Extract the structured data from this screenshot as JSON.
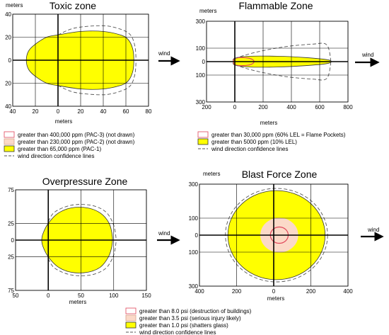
{
  "colors": {
    "inner_line": "#e0455a",
    "middle_fill": "#fbd9c8",
    "outer_fill": "#ffff00",
    "outline": "#333333",
    "grid": "#000000",
    "confidence": "#555555",
    "arrow": "#000000"
  },
  "wind_label": "wind",
  "chart_data": [
    {
      "id": "toxic",
      "type": "area",
      "title": "Toxic zone",
      "ylabel": "meters",
      "xlabel": "meters",
      "x_ticks": [
        "40",
        "20",
        "0",
        "20",
        "40",
        "60",
        "80"
      ],
      "y_ticks": [
        "40",
        "20",
        "0",
        "20",
        "40"
      ],
      "xlim": [
        -40,
        80
      ],
      "ylim": [
        -40,
        40
      ],
      "grid": true,
      "zones": [
        {
          "label": "greater than 400,000 ppm (PAC-3) (not drawn)",
          "style": "inner"
        },
        {
          "label": "greater than 230,000 ppm (PAC-2) (not drawn)",
          "style": "middle"
        },
        {
          "label": "greater than 65,000 ppm (PAC-1)",
          "style": "outer",
          "boundary": [
            [
              -28,
              0
            ],
            [
              -26,
              8
            ],
            [
              -20,
              14
            ],
            [
              -10,
              20
            ],
            [
              0,
              22
            ],
            [
              20,
              25
            ],
            [
              40,
              25
            ],
            [
              55,
              22
            ],
            [
              62,
              18
            ],
            [
              66,
              10
            ],
            [
              67,
              0
            ],
            [
              66,
              -10
            ],
            [
              62,
              -18
            ],
            [
              55,
              -22
            ],
            [
              40,
              -25
            ],
            [
              20,
              -25
            ],
            [
              0,
              -22
            ],
            [
              -10,
              -20
            ],
            [
              -20,
              -14
            ],
            [
              -26,
              -8
            ]
          ]
        }
      ],
      "confidence_lines": {
        "label": "wind direction confidence lines",
        "upper": [
          [
            0,
            22
          ],
          [
            15,
            28
          ],
          [
            40,
            30
          ],
          [
            55,
            27
          ],
          [
            64,
            22
          ],
          [
            68,
            12
          ],
          [
            69,
            0
          ]
        ],
        "lower": [
          [
            0,
            -22
          ],
          [
            15,
            -28
          ],
          [
            40,
            -30
          ],
          [
            55,
            -27
          ],
          [
            64,
            -22
          ],
          [
            68,
            -12
          ],
          [
            69,
            0
          ]
        ]
      }
    },
    {
      "id": "flammable",
      "type": "area",
      "title": "Flammable Zone",
      "ylabel": "meters",
      "xlabel": "meters",
      "x_ticks": [
        "200",
        "0",
        "200",
        "400",
        "600",
        "800"
      ],
      "y_ticks": [
        "300",
        "100",
        "0",
        "100",
        "300"
      ],
      "xlim": [
        -200,
        800
      ],
      "ylim": [
        -300,
        300
      ],
      "grid": true,
      "zones": [
        {
          "label": "greater than 30,000 ppm (60% LEL = Flame Pockets)",
          "style": "inner",
          "boundary": [
            [
              -10,
              0
            ],
            [
              0,
              22
            ],
            [
              40,
              30
            ],
            [
              100,
              26
            ],
            [
              130,
              12
            ],
            [
              135,
              0
            ],
            [
              130,
              -12
            ],
            [
              100,
              -26
            ],
            [
              40,
              -30
            ],
            [
              0,
              -22
            ]
          ]
        },
        {
          "label": "greater than 5000 ppm (10% LEL)",
          "style": "outer",
          "boundary": [
            [
              -10,
              0
            ],
            [
              0,
              25
            ],
            [
              100,
              40
            ],
            [
              300,
              40
            ],
            [
              500,
              30
            ],
            [
              650,
              15
            ],
            [
              680,
              0
            ],
            [
              650,
              -15
            ],
            [
              500,
              -30
            ],
            [
              300,
              -40
            ],
            [
              100,
              -40
            ],
            [
              0,
              -25
            ]
          ]
        }
      ],
      "confidence_lines": {
        "label": "wind direction confidence lines",
        "upper": [
          [
            0,
            25
          ],
          [
            150,
            70
          ],
          [
            350,
            110
          ],
          [
            550,
            130
          ],
          [
            650,
            125
          ],
          [
            680,
            0
          ]
        ],
        "lower": [
          [
            0,
            -25
          ],
          [
            150,
            -70
          ],
          [
            350,
            -110
          ],
          [
            550,
            -130
          ],
          [
            650,
            -125
          ],
          [
            680,
            0
          ]
        ]
      }
    },
    {
      "id": "overpressure",
      "type": "area",
      "title": "Overpressure Zone",
      "ylabel": "",
      "xlabel": "meters",
      "x_ticks": [
        "50",
        "0",
        "50",
        "100",
        "150"
      ],
      "y_ticks": [
        "75",
        "25",
        "0",
        "25",
        "75"
      ],
      "xlim": [
        -50,
        150
      ],
      "ylim": [
        -75,
        75
      ],
      "grid": true,
      "zones": [
        {
          "label": "greater than 8.0 psi (destruction of buildings)",
          "style": "inner"
        },
        {
          "label": "greater than 3.5 psi (serious injury likely)",
          "style": "middle"
        },
        {
          "label": "greater than 1.0 psi (shatters glass)",
          "style": "outer",
          "boundary": [
            [
              -10,
              0
            ],
            [
              -8,
              10
            ],
            [
              0,
              25
            ],
            [
              15,
              40
            ],
            [
              35,
              48
            ],
            [
              60,
              48
            ],
            [
              80,
              40
            ],
            [
              93,
              25
            ],
            [
              98,
              5
            ],
            [
              97,
              -10
            ],
            [
              92,
              -25
            ],
            [
              80,
              -40
            ],
            [
              60,
              -48
            ],
            [
              35,
              -48
            ],
            [
              15,
              -40
            ],
            [
              0,
              -25
            ],
            [
              -8,
              -10
            ]
          ]
        }
      ],
      "confidence_lines": {
        "label": "wind direction confidence lines",
        "upper": [
          [
            0,
            28
          ],
          [
            10,
            42
          ],
          [
            35,
            52
          ],
          [
            65,
            52
          ],
          [
            88,
            42
          ],
          [
            100,
            22
          ],
          [
            104,
            0
          ]
        ],
        "lower": [
          [
            0,
            -28
          ],
          [
            10,
            -42
          ],
          [
            35,
            -52
          ],
          [
            65,
            -52
          ],
          [
            88,
            -42
          ],
          [
            100,
            -22
          ],
          [
            104,
            0
          ]
        ]
      }
    },
    {
      "id": "blast",
      "type": "area",
      "title": "Blast Force Zone",
      "ylabel": "meters",
      "xlabel": "meters",
      "x_ticks": [
        "400",
        "200",
        "0",
        "200",
        "400"
      ],
      "y_ticks": [
        "300",
        "100",
        "0",
        "100",
        "300"
      ],
      "xlim": [
        -400,
        400
      ],
      "ylim": [
        -300,
        300
      ],
      "grid": true,
      "zones": [
        {
          "label": "greater than 8.0 psi (destruction of buildings)",
          "style": "inner",
          "circle": {
            "cx": 30,
            "cy": 0,
            "r": 48
          }
        },
        {
          "label": "greater than 3.5 psi (serious injury likely)",
          "style": "middle",
          "circle": {
            "cx": 30,
            "cy": 0,
            "r": 100
          }
        },
        {
          "label": "greater than 1.0 psi (shatters glass)",
          "style": "outer",
          "circle": {
            "cx": 15,
            "cy": 0,
            "r": 262
          }
        }
      ],
      "confidence_lines": {
        "label": "wind direction confidence lines",
        "circle": {
          "cx": 15,
          "cy": 0,
          "r": 275
        }
      }
    }
  ]
}
